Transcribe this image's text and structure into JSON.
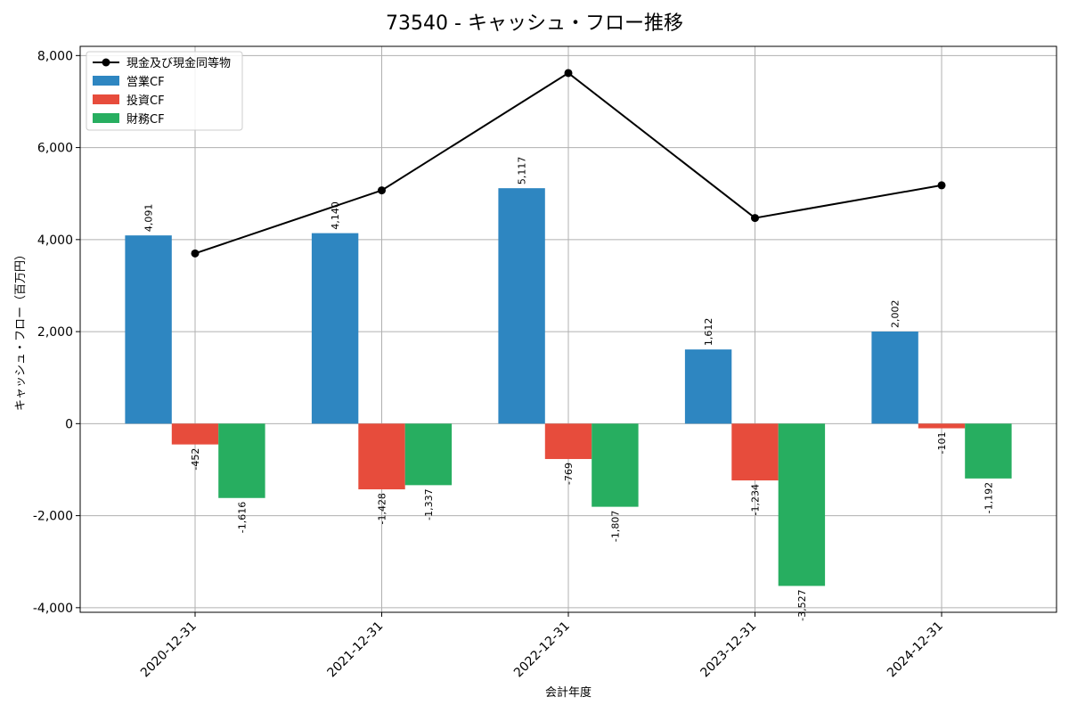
{
  "chart_data": {
    "type": "bar",
    "title": "73540 - キャッシュ・フロー推移",
    "xlabel": "会計年度",
    "ylabel": "キャッシュ・フロー（百万円）",
    "categories": [
      "2020-12-31",
      "2021-12-31",
      "2022-12-31",
      "2023-12-31",
      "2024-12-31"
    ],
    "ylim": [
      -4100,
      8200
    ],
    "yticks": [
      -4000,
      -2000,
      0,
      2000,
      4000,
      6000,
      8000
    ],
    "ytick_labels": [
      "-4,000",
      "-2,000",
      "0",
      "2,000",
      "4,000",
      "6,000",
      "8,000"
    ],
    "grid": true,
    "legend_position": "top-left",
    "series": [
      {
        "name": "営業CF",
        "kind": "bar",
        "color": "#2e86c1",
        "values": [
          4091,
          4140,
          5117,
          1612,
          2002
        ],
        "labels": [
          "4,091",
          "4,140",
          "5,117",
          "1,612",
          "2,002"
        ]
      },
      {
        "name": "投資CF",
        "kind": "bar",
        "color": "#e74c3c",
        "values": [
          -452,
          -1428,
          -769,
          -1234,
          -101
        ],
        "labels": [
          "-452",
          "-1,428",
          "-769",
          "-1,234",
          "-101"
        ]
      },
      {
        "name": "財務CF",
        "kind": "bar",
        "color": "#27ae60",
        "values": [
          -1616,
          -1337,
          -1807,
          -3527,
          -1192
        ],
        "labels": [
          "-1,616",
          "-1,337",
          "-1,807",
          "-3,527",
          "-1,192"
        ]
      }
    ],
    "line": {
      "name": "現金及び現金同等物",
      "kind": "line",
      "color": "#000000",
      "values": [
        3700,
        5070,
        7620,
        4470,
        5180
      ]
    }
  }
}
